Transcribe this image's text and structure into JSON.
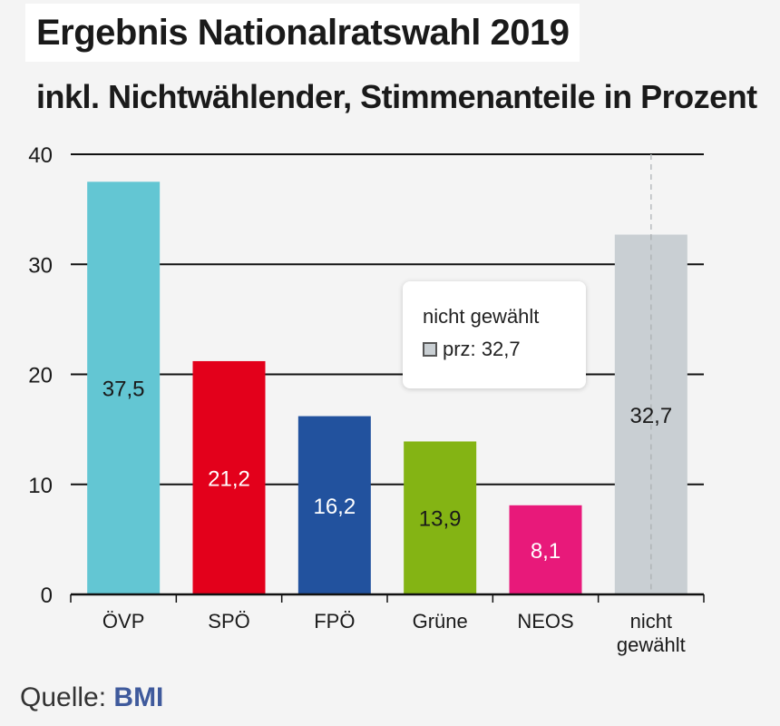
{
  "header": {
    "title": "Ergebnis Nationalratswahl 2019",
    "subtitle": "inkl. Nichtwählender, Stimmenanteile in Prozent"
  },
  "source": {
    "prefix": "Quelle:",
    "name": "BMI"
  },
  "tooltip": {
    "title": "nicht gewählt",
    "label": "prz:",
    "value": "32,7",
    "swatch_color": "#c9cfd3"
  },
  "chart_data": {
    "type": "bar",
    "title": "Ergebnis Nationalratswahl 2019",
    "subtitle": "inkl. Nichtwählender, Stimmenanteile in Prozent",
    "xlabel": "",
    "ylabel": "",
    "ylim": [
      0,
      40
    ],
    "yticks": [
      0,
      10,
      20,
      30,
      40
    ],
    "grid": true,
    "legend": "none",
    "categories": [
      "ÖVP",
      "SPÖ",
      "FPÖ",
      "Grüne",
      "NEOS",
      "nicht gewählt"
    ],
    "values": [
      37.5,
      21.2,
      16.2,
      13.9,
      8.1,
      32.7
    ],
    "value_labels": [
      "37,5",
      "21,2",
      "16,2",
      "13,9",
      "8,1",
      "32,7"
    ],
    "colors": [
      "#63c6d3",
      "#e3001b",
      "#22529e",
      "#84b414",
      "#e8197a",
      "#c9cfd3"
    ],
    "label_colors": [
      "#1a1a1a",
      "#ffffff",
      "#ffffff",
      "#1a1a1a",
      "#ffffff",
      "#1a1a1a"
    ],
    "highlighted": "nicht gewählt"
  }
}
